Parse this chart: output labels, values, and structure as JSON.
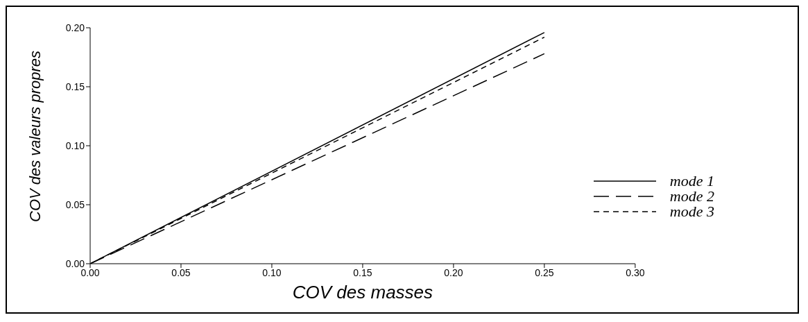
{
  "chart_data": {
    "type": "line",
    "xlabel": "COV des masses",
    "ylabel": "COV des valeurs propres",
    "xlim": [
      0,
      0.3
    ],
    "ylim": [
      0,
      0.2
    ],
    "xticks": [
      {
        "value": 0,
        "label": "0.00"
      },
      0.05,
      {
        "value": 0.1,
        "label": "0.10"
      },
      0.15,
      {
        "value": 0.2,
        "label": "0.20"
      },
      0.25,
      {
        "value": 0.3,
        "label": "0.30"
      }
    ],
    "yticks": [
      {
        "value": 0,
        "label": "0.00"
      },
      0.05,
      {
        "value": 0.1,
        "label": "0.10"
      },
      0.15,
      {
        "value": 0.2,
        "label": "0.20"
      }
    ],
    "x": [
      0,
      0.25
    ],
    "series": [
      {
        "name": "mode 1",
        "color": "#000000",
        "values": [
          0,
          0.196
        ],
        "line_style": "solid"
      },
      {
        "name": "mode 2",
        "color": "#000000",
        "values": [
          0,
          0.178
        ],
        "line_style": "dashed"
      },
      {
        "name": "mode 3",
        "color": "#000000",
        "values": [
          0,
          0.192
        ],
        "line_style": "dotted"
      }
    ],
    "grid": false,
    "legend": "right",
    "marker": "none"
  }
}
